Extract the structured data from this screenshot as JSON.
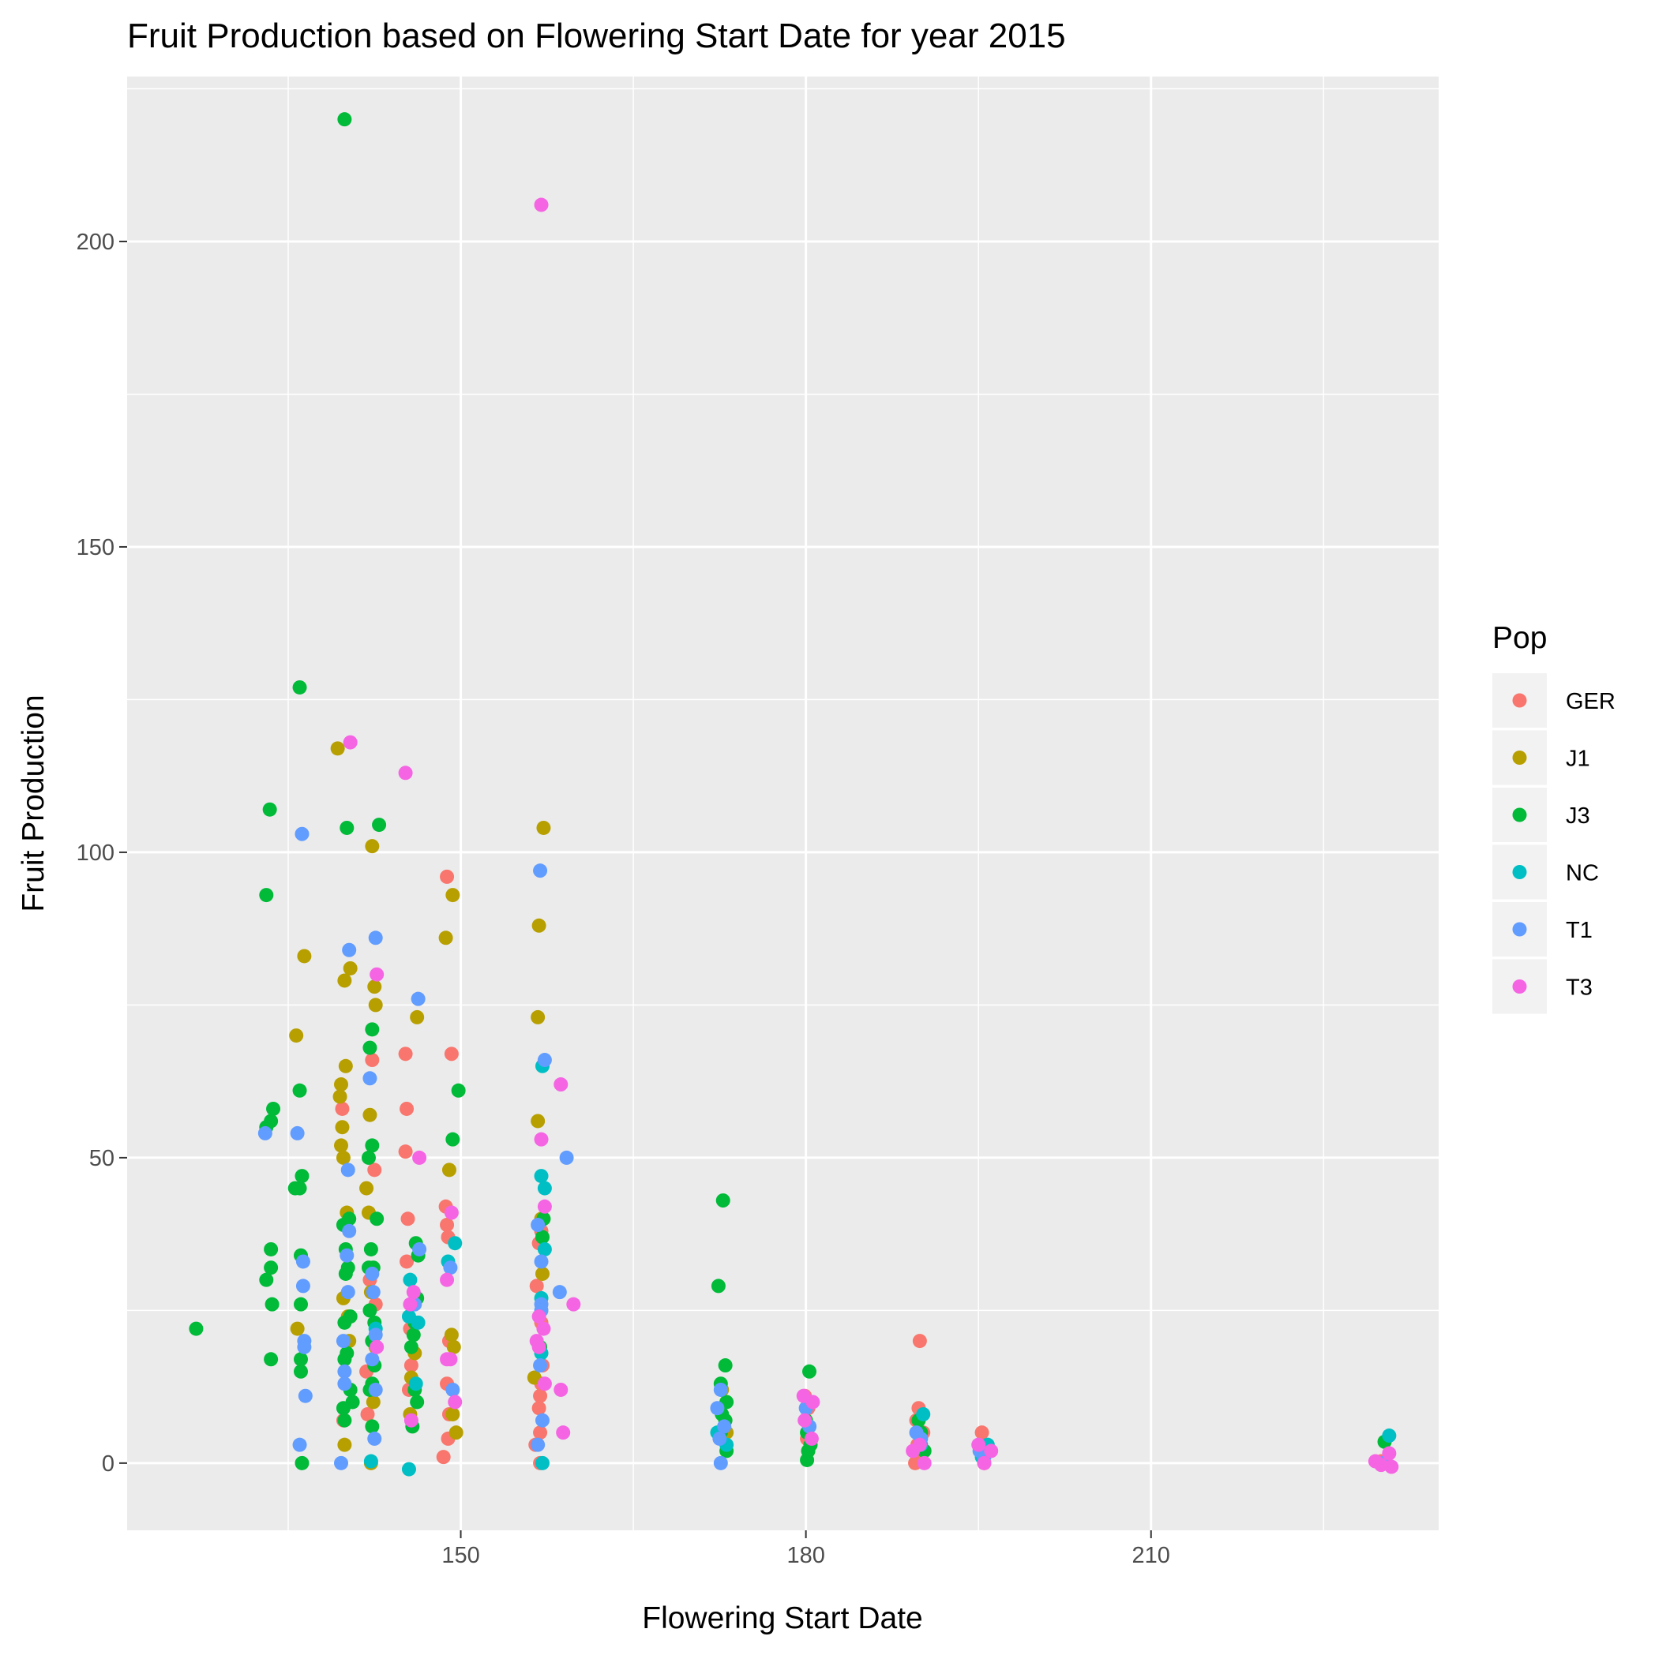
{
  "chart_data": {
    "type": "scatter",
    "title": "Fruit Production based on Flowering Start Date for year 2015",
    "xlabel": "Flowering Start Date",
    "ylabel": "Fruit Production",
    "xlim": [
      121,
      235
    ],
    "ylim": [
      -11,
      227
    ],
    "xticks": [
      150,
      180,
      210
    ],
    "xticks_minor": [
      135,
      165,
      195,
      225
    ],
    "yticks": [
      0,
      50,
      100,
      150,
      200
    ],
    "yticks_minor": [
      25,
      75,
      125,
      175,
      225
    ],
    "grid": true,
    "panel_background": "#ebebeb",
    "legend": {
      "title": "Pop",
      "position": "right"
    },
    "series": [
      {
        "name": "GER",
        "color": "#F8766D",
        "points": [
          [
            139.7,
            58
          ],
          [
            139.8,
            7
          ],
          [
            142.6,
            26
          ],
          [
            142.5,
            48
          ],
          [
            142.3,
            66
          ],
          [
            142.1,
            30
          ],
          [
            141.8,
            15
          ],
          [
            141.9,
            8
          ],
          [
            145.2,
            67
          ],
          [
            145.3,
            58
          ],
          [
            145.2,
            51
          ],
          [
            145.4,
            40
          ],
          [
            145.3,
            33
          ],
          [
            145.6,
            22
          ],
          [
            145.7,
            16
          ],
          [
            145.5,
            12
          ],
          [
            148.8,
            96
          ],
          [
            149.2,
            67
          ],
          [
            148.7,
            42
          ],
          [
            148.8,
            39
          ],
          [
            148.9,
            37
          ],
          [
            149.0,
            20
          ],
          [
            148.8,
            13
          ],
          [
            149.0,
            8
          ],
          [
            148.9,
            4
          ],
          [
            148.5,
            1
          ],
          [
            157.0,
            38
          ],
          [
            156.8,
            36
          ],
          [
            156.6,
            29
          ],
          [
            157.0,
            23
          ],
          [
            157.1,
            16
          ],
          [
            157.0,
            13
          ],
          [
            156.9,
            11
          ],
          [
            156.8,
            9
          ],
          [
            156.9,
            5
          ],
          [
            156.5,
            3
          ],
          [
            156.9,
            0
          ],
          [
            179.9,
            11
          ],
          [
            180.2,
            9
          ],
          [
            180.0,
            7
          ],
          [
            180.3,
            6
          ],
          [
            180.1,
            4
          ],
          [
            180.4,
            3
          ],
          [
            189.9,
            20
          ],
          [
            189.8,
            9
          ],
          [
            189.6,
            7
          ],
          [
            190.2,
            5
          ],
          [
            189.7,
            3
          ],
          [
            190.0,
            1
          ],
          [
            189.5,
            0
          ],
          [
            195.3,
            5
          ],
          [
            195.8,
            2
          ],
          [
            195.5,
            0
          ],
          [
            230.0,
            0.3
          ]
        ]
      },
      {
        "name": "J1",
        "color": "#B79F00",
        "points": [
          [
            139.3,
            117
          ],
          [
            139.6,
            62
          ],
          [
            139.5,
            60
          ],
          [
            139.7,
            55
          ],
          [
            139.6,
            52
          ],
          [
            139.8,
            50
          ],
          [
            139.9,
            79
          ],
          [
            140.0,
            65
          ],
          [
            140.4,
            81
          ],
          [
            140.1,
            41
          ],
          [
            139.8,
            27
          ],
          [
            140.2,
            24
          ],
          [
            140.3,
            20
          ],
          [
            139.9,
            3
          ],
          [
            136.4,
            83
          ],
          [
            135.7,
            70
          ],
          [
            135.8,
            22
          ],
          [
            142.3,
            101
          ],
          [
            142.5,
            78
          ],
          [
            142.6,
            75
          ],
          [
            142.1,
            57
          ],
          [
            141.8,
            45
          ],
          [
            142.0,
            41
          ],
          [
            142.2,
            28
          ],
          [
            142.6,
            19
          ],
          [
            142.4,
            10
          ],
          [
            142.2,
            0
          ],
          [
            146.2,
            73
          ],
          [
            146.0,
            18
          ],
          [
            145.7,
            14
          ],
          [
            145.6,
            8
          ],
          [
            148.7,
            86
          ],
          [
            149.3,
            93
          ],
          [
            149.0,
            48
          ],
          [
            149.2,
            21
          ],
          [
            149.4,
            19
          ],
          [
            149.3,
            8
          ],
          [
            149.6,
            5
          ],
          [
            156.8,
            88
          ],
          [
            156.7,
            73
          ],
          [
            156.7,
            56
          ],
          [
            157.2,
            104
          ],
          [
            157.0,
            40
          ],
          [
            157.1,
            31
          ],
          [
            156.4,
            14
          ],
          [
            172.7,
            12
          ],
          [
            173.1,
            5
          ],
          [
            180.2,
            2
          ]
        ]
      },
      {
        "name": "J3",
        "color": "#00BA38",
        "points": [
          [
            139.9,
            220
          ],
          [
            136.0,
            127
          ],
          [
            133.4,
            107
          ],
          [
            140.1,
            104
          ],
          [
            142.9,
            104.5
          ],
          [
            133.1,
            93
          ],
          [
            133.7,
            58
          ],
          [
            133.5,
            56
          ],
          [
            133.1,
            55
          ],
          [
            136.0,
            61
          ],
          [
            136.2,
            47
          ],
          [
            136.0,
            45
          ],
          [
            135.6,
            45
          ],
          [
            133.5,
            35
          ],
          [
            133.5,
            32
          ],
          [
            133.1,
            30
          ],
          [
            133.6,
            26
          ],
          [
            136.1,
            34
          ],
          [
            136.1,
            26
          ],
          [
            133.5,
            17
          ],
          [
            136.1,
            15
          ],
          [
            136.1,
            17
          ],
          [
            136.2,
            0
          ],
          [
            127.0,
            22
          ],
          [
            140.3,
            40
          ],
          [
            139.8,
            39
          ],
          [
            140.0,
            35
          ],
          [
            140.2,
            32
          ],
          [
            140.0,
            31
          ],
          [
            140.4,
            24
          ],
          [
            139.9,
            23
          ],
          [
            140.1,
            18
          ],
          [
            139.9,
            17
          ],
          [
            140.4,
            12
          ],
          [
            140.6,
            10
          ],
          [
            139.8,
            9
          ],
          [
            139.9,
            7
          ],
          [
            142.3,
            71
          ],
          [
            142.1,
            68
          ],
          [
            142.3,
            52
          ],
          [
            142.0,
            50
          ],
          [
            142.7,
            40
          ],
          [
            142.2,
            35
          ],
          [
            142.0,
            32
          ],
          [
            142.4,
            32
          ],
          [
            142.1,
            25
          ],
          [
            142.5,
            23
          ],
          [
            142.3,
            20
          ],
          [
            142.5,
            16
          ],
          [
            142.3,
            13
          ],
          [
            142.1,
            12
          ],
          [
            142.3,
            6
          ],
          [
            146.1,
            36
          ],
          [
            146.3,
            34
          ],
          [
            146.2,
            27
          ],
          [
            146.0,
            23
          ],
          [
            145.9,
            21
          ],
          [
            145.7,
            19
          ],
          [
            146.0,
            12
          ],
          [
            146.2,
            10
          ],
          [
            145.8,
            6
          ],
          [
            149.8,
            61
          ],
          [
            149.3,
            53
          ],
          [
            157.2,
            40
          ],
          [
            157.1,
            37
          ],
          [
            156.9,
            19
          ],
          [
            172.8,
            43
          ],
          [
            172.4,
            29
          ],
          [
            173.0,
            16
          ],
          [
            172.6,
            13
          ],
          [
            173.1,
            10
          ],
          [
            172.7,
            8
          ],
          [
            173.0,
            7
          ],
          [
            172.6,
            5
          ],
          [
            173.1,
            2
          ],
          [
            180.3,
            15
          ],
          [
            180.0,
            7
          ],
          [
            180.1,
            5
          ],
          [
            180.4,
            3
          ],
          [
            180.2,
            2
          ],
          [
            180.1,
            0.5
          ],
          [
            189.8,
            7
          ],
          [
            190.0,
            5
          ],
          [
            189.9,
            3
          ],
          [
            190.3,
            2
          ],
          [
            230.3,
            3.5
          ]
        ]
      },
      {
        "name": "NC",
        "color": "#00BFC4",
        "points": [
          [
            142.6,
            22
          ],
          [
            142.2,
            0.3
          ],
          [
            145.5,
            24
          ],
          [
            145.6,
            30
          ],
          [
            146.1,
            13
          ],
          [
            146.3,
            23
          ],
          [
            145.5,
            -1
          ],
          [
            148.9,
            33
          ],
          [
            149.5,
            36
          ],
          [
            157.1,
            65
          ],
          [
            157.3,
            45
          ],
          [
            157.0,
            47
          ],
          [
            157.3,
            35
          ],
          [
            157.0,
            27
          ],
          [
            157.0,
            18
          ],
          [
            157.1,
            0
          ],
          [
            173.1,
            3
          ],
          [
            172.3,
            5
          ],
          [
            180.3,
            6
          ],
          [
            190.2,
            8
          ],
          [
            190.0,
            3
          ],
          [
            195.3,
            1
          ],
          [
            195.8,
            3
          ],
          [
            230.7,
            4.5
          ]
        ]
      },
      {
        "name": "T1",
        "color": "#619CFF",
        "points": [
          [
            133.0,
            54
          ],
          [
            135.8,
            54
          ],
          [
            136.2,
            103
          ],
          [
            136.3,
            33
          ],
          [
            136.3,
            29
          ],
          [
            136.4,
            20
          ],
          [
            136.4,
            19
          ],
          [
            136.5,
            11
          ],
          [
            136.0,
            3
          ],
          [
            139.6,
            0
          ],
          [
            140.3,
            84
          ],
          [
            140.2,
            48
          ],
          [
            140.3,
            38
          ],
          [
            140.1,
            34
          ],
          [
            140.2,
            28
          ],
          [
            139.8,
            20
          ],
          [
            139.9,
            15
          ],
          [
            139.9,
            13
          ],
          [
            142.6,
            86
          ],
          [
            142.1,
            63
          ],
          [
            142.3,
            31
          ],
          [
            142.4,
            28
          ],
          [
            142.6,
            21
          ],
          [
            142.3,
            17
          ],
          [
            142.6,
            12
          ],
          [
            142.5,
            4
          ],
          [
            146.3,
            76
          ],
          [
            146.4,
            35
          ],
          [
            146.0,
            26
          ],
          [
            149.1,
            32
          ],
          [
            149.3,
            12
          ],
          [
            156.9,
            97
          ],
          [
            157.3,
            66
          ],
          [
            159.2,
            50
          ],
          [
            156.7,
            39
          ],
          [
            157.0,
            33
          ],
          [
            158.6,
            28
          ],
          [
            157.0,
            26
          ],
          [
            157.0,
            25
          ],
          [
            156.9,
            16
          ],
          [
            157.1,
            7
          ],
          [
            156.7,
            3
          ],
          [
            172.6,
            12
          ],
          [
            172.3,
            9
          ],
          [
            172.9,
            6
          ],
          [
            172.5,
            4
          ],
          [
            172.6,
            0
          ],
          [
            180.0,
            9
          ],
          [
            180.3,
            6
          ],
          [
            189.6,
            5
          ],
          [
            190.0,
            4
          ],
          [
            195.1,
            2
          ],
          [
            195.5,
            1
          ],
          [
            230.2,
            0
          ]
        ]
      },
      {
        "name": "T3",
        "color": "#F564E3",
        "points": [
          [
            157.0,
            206
          ],
          [
            140.4,
            118
          ],
          [
            145.2,
            113
          ],
          [
            142.7,
            80
          ],
          [
            158.7,
            62
          ],
          [
            157.0,
            53
          ],
          [
            146.4,
            50
          ],
          [
            157.3,
            42
          ],
          [
            149.2,
            41
          ],
          [
            148.8,
            30
          ],
          [
            145.9,
            28
          ],
          [
            145.6,
            26
          ],
          [
            156.8,
            24
          ],
          [
            157.2,
            22
          ],
          [
            156.6,
            20
          ],
          [
            159.8,
            26
          ],
          [
            156.8,
            19
          ],
          [
            149.1,
            17
          ],
          [
            148.8,
            17
          ],
          [
            157.3,
            13
          ],
          [
            158.7,
            12
          ],
          [
            149.5,
            10
          ],
          [
            145.7,
            7
          ],
          [
            158.9,
            5
          ],
          [
            142.7,
            19
          ],
          [
            179.8,
            11
          ],
          [
            180.6,
            10
          ],
          [
            179.9,
            7
          ],
          [
            180.5,
            4
          ],
          [
            189.9,
            3
          ],
          [
            190.3,
            0
          ],
          [
            189.3,
            2
          ],
          [
            195.0,
            3
          ],
          [
            196.1,
            2
          ],
          [
            195.5,
            0
          ],
          [
            229.5,
            0.3
          ],
          [
            230.0,
            -0.3
          ],
          [
            230.7,
            1.6
          ],
          [
            230.9,
            -0.6
          ]
        ]
      }
    ]
  }
}
